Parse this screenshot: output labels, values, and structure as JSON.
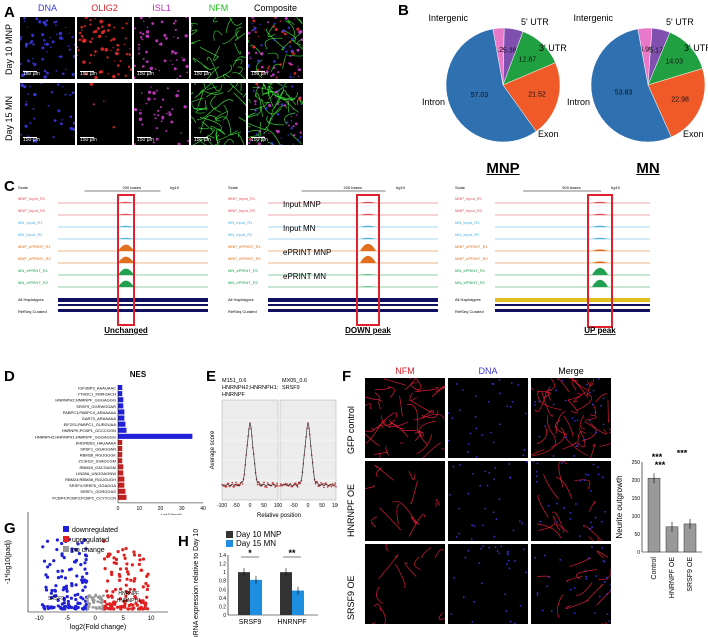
{
  "panels": {
    "A": "A",
    "B": "B",
    "C": "C",
    "D": "D",
    "E": "E",
    "F": "F",
    "G": "G",
    "H": "H"
  },
  "panelA": {
    "channels": [
      {
        "name": "DNA",
        "color": "#3a3adf"
      },
      {
        "name": "OLIG2",
        "color": "#e0202a"
      },
      {
        "name": "ISL1",
        "color": "#c030c0"
      },
      {
        "name": "NFM",
        "color": "#20c020"
      },
      {
        "name": "Composite",
        "color": "#000000"
      }
    ],
    "rows": [
      "Day 10 MNP",
      "Day 15 MN"
    ],
    "scale": "150 µm"
  },
  "panelB": {
    "charts": [
      {
        "title": "MNP",
        "labels": [
          "Intergenic",
          "5' UTR",
          "3' UTR",
          "Intron",
          "Exon"
        ]
      },
      {
        "title": "MN",
        "labels": [
          "Intergenic",
          "5' UTR",
          "3' UTR",
          "Intron",
          "Exon"
        ]
      }
    ]
  },
  "panelC": {
    "captions": [
      "Unchanged",
      "DOWN peak",
      "UP peak"
    ],
    "header": {
      "scale": "Scale",
      "scale_val1": "200 bases",
      "scale_val2": "200 bases",
      "scale_val3": "500 bases",
      "genome": "hg19"
    },
    "tracks": [
      "MNP_input_R1",
      "MNP_input_R2",
      "MN_input_R1",
      "MN_input_R2",
      "MNP_ePRINT_R1",
      "MNP_ePRINT_R2",
      "MN_ePRINT_R1",
      "MN_ePRINT_R2"
    ],
    "middle_labels": [
      "Input MNP",
      "Input MN",
      "ePRINT MNP",
      "ePRINT MN"
    ],
    "footer": [
      "All Haplotypes",
      "RefSeq Curated"
    ]
  },
  "panelD": {
    "title": "NES",
    "xlabel": "-Log10(pval)",
    "up_rows": [
      {
        "name": "IGF2BP3_AAAUAAC",
        "v": 2
      },
      {
        "name": "YTHDC1_KMRGACH",
        "v": 2
      },
      {
        "name": "HNRNPH2;HNRNPF_GGGAGGG",
        "v": 2.5
      },
      {
        "name": "SRSF9_GGRWGGAR",
        "v": 2.5
      },
      {
        "name": "PABPC1;PABPC4_ARAAAAA",
        "v": 3
      },
      {
        "name": "GAR73_ARAAAAA",
        "v": 3
      },
      {
        "name": "EIF2S1;PABPC1_GURGUAA",
        "v": 3.5
      },
      {
        "name": "HNRNPK;PCBP1_GCCCGGN",
        "v": 4
      },
      {
        "name": "HNRNPH2;HNRNPH1;HNRNPF_GGGAGGG",
        "v": 35
      }
    ],
    "down_rows": [
      {
        "name": "KHDRBS3_HAUAAAA",
        "v": 2
      },
      {
        "name": "SRSF1_GGAGGAN",
        "v": 2
      },
      {
        "name": "RBM38_RGUGUGK",
        "v": 2
      },
      {
        "name": "ZC3H10_SSAGCGM",
        "v": 2
      },
      {
        "name": "RBM45_GACGAGM",
        "v": 2.5
      },
      {
        "name": "LIN28A_UNGGAGNW",
        "v": 2.5
      },
      {
        "name": "RBM24;RBM38_RGUGUGH",
        "v": 3
      },
      {
        "name": "SRSF4;SRSF6_GGAGGA",
        "v": 3
      },
      {
        "name": "SRSF1_GGRGGAS",
        "v": 3.5
      },
      {
        "name": "PCBP4;PCBP3;PCBP2_CCYYCCN",
        "v": 4
      }
    ],
    "ticks": [
      "0",
      "10",
      "20",
      "30",
      "40"
    ]
  },
  "panelE": {
    "left_title1": "M151_0.6",
    "left_title2": "HNRNPH2;HNRNPH1;",
    "left_title3": "HNRNPF",
    "right_title1": "MX05_0.6",
    "right_title2": "SRSF9",
    "ylabel": "Average score",
    "xlabel": "Relative position",
    "ticks": [
      "-100",
      "-50",
      "0",
      "50",
      "100"
    ]
  },
  "panelF": {
    "channels": [
      "NFM",
      "DNA",
      "Merge"
    ],
    "rows": [
      "GFP control",
      "HNRNPF OE",
      "SRSF9 OE"
    ],
    "chart_data": {
      "type": "bar",
      "categories": [
        "Control",
        "HNRNPF OE",
        "SRSF9 OE"
      ],
      "values": [
        205,
        70,
        78
      ],
      "ylabel": "Neurite outgrowth",
      "yticks": [
        "0",
        "50",
        "100",
        "150",
        "200",
        "250"
      ],
      "ylim": [
        0,
        250
      ],
      "sig": [
        "***",
        "***",
        "***"
      ]
    }
  },
  "panelG": {
    "legend": [
      {
        "label": "downregulated",
        "color": "#2020d8"
      },
      {
        "label": "upregulated",
        "color": "#e02020"
      },
      {
        "label": "no change",
        "color": "#999999"
      }
    ],
    "xlabel": "log2(Fold change)",
    "ylabel": "-1*log10(padj)",
    "xticks": [
      "-10",
      "-5",
      "0",
      "5",
      "10"
    ],
    "annotations": [
      "SRSF9",
      "HNRNPF",
      "HNRNPH1"
    ]
  },
  "panelH": {
    "chart_data": {
      "type": "bar",
      "categories": [
        "SRSF9",
        "HNRNPF"
      ],
      "series": [
        {
          "name": "Day 10 MNP",
          "values": [
            1.0,
            1.0
          ],
          "color": "#333333"
        },
        {
          "name": "Day 15 MN",
          "values": [
            0.82,
            0.57
          ],
          "color": "#1e8fe0"
        }
      ],
      "ylabel": "mRNA expression relative to Day 10",
      "ylim": [
        0,
        1.4
      ],
      "yticks": [
        "0",
        "0.2",
        "0.4",
        "0.6",
        "0.8",
        "1",
        "1.2",
        "1.4"
      ],
      "sig": [
        "*",
        "**"
      ]
    }
  }
}
